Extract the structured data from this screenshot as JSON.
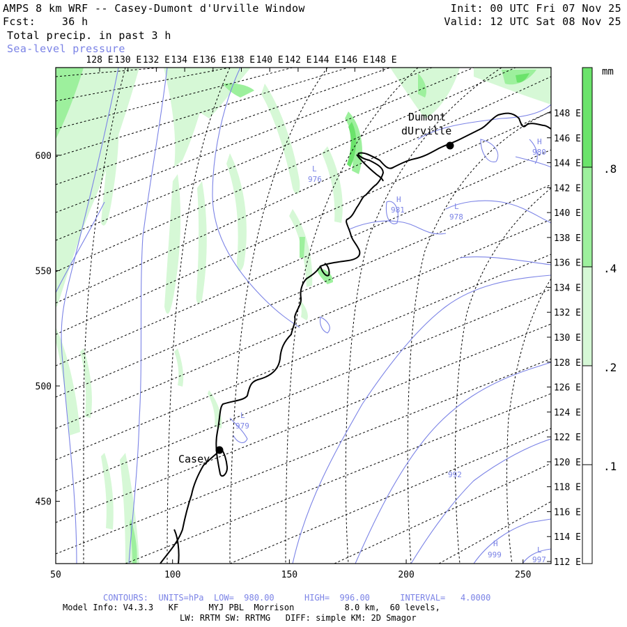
{
  "header": {
    "title": "AMPS 8 km WRF -- Casey-Dumont d'Urville Window",
    "forecast": "Fcst:    36 h",
    "field": "Total precip. in past 3 h",
    "overlay": "Sea-level pressure",
    "init": "Init: 00 UTC Fri 07 Nov 25",
    "valid": "Valid: 12 UTC Sat 08 Nov 25"
  },
  "axes": {
    "top_ticks": [
      "128 E",
      "130 E",
      "132 E",
      "134 E",
      "136 E",
      "138 E",
      "140 E",
      "142 E",
      "144 E",
      "146 E",
      "148 E"
    ],
    "right_ticks": [
      "148 E",
      "146 E",
      "144 E",
      "142 E",
      "140 E",
      "138 E",
      "136 E",
      "134 E",
      "132 E",
      "130 E",
      "128 E",
      "126 E",
      "124 E",
      "122 E",
      "120 E",
      "118 E",
      "116 E",
      "114 E",
      "112 E"
    ],
    "left_ticks": [
      "600",
      "550",
      "500",
      "450"
    ],
    "bottom_ticks": [
      "50",
      "100",
      "150",
      "200",
      "250"
    ],
    "x_range": [
      50,
      262
    ],
    "y_range": [
      423,
      638
    ]
  },
  "colorbar": {
    "unit": "mm",
    "labels": [
      ".8",
      ".4",
      ".2",
      ".1"
    ],
    "colors": {
      "level_08": "#6be36b",
      "level_04": "#9df09d",
      "level_02": "#d6f8d6",
      "level_01": "#ffffff"
    }
  },
  "places": [
    {
      "name": "Dumont\ndUrville",
      "line1": "Dumont",
      "line2": "dUrville"
    },
    {
      "name": "Casey",
      "line1": "Casey"
    }
  ],
  "pressure_labels": [
    {
      "type": "L",
      "value": "976"
    },
    {
      "type": "H",
      "value": "981"
    },
    {
      "type": "L",
      "value": "978"
    },
    {
      "type": "H",
      "value": "980"
    },
    {
      "type": "L",
      "value": "979"
    },
    {
      "type": "",
      "value": "992"
    },
    {
      "type": "H",
      "value": "999"
    },
    {
      "type": "L",
      "value": "997"
    }
  ],
  "footer": {
    "contours": "CONTOURS:  UNITS=hPa  LOW=  980.00      HIGH=  996.00      INTERVAL=   4.0000",
    "model_info": "Model Info: V4.3.3   KF      MYJ PBL  Morrison          8.0 km,  60 levels,",
    "physics": "LW: RRTM SW: RRTMG   DIFF: simple KM: 2D Smagor"
  },
  "colors": {
    "contour": "#7b83e6",
    "coast": "#000000",
    "grid": "#000000"
  }
}
